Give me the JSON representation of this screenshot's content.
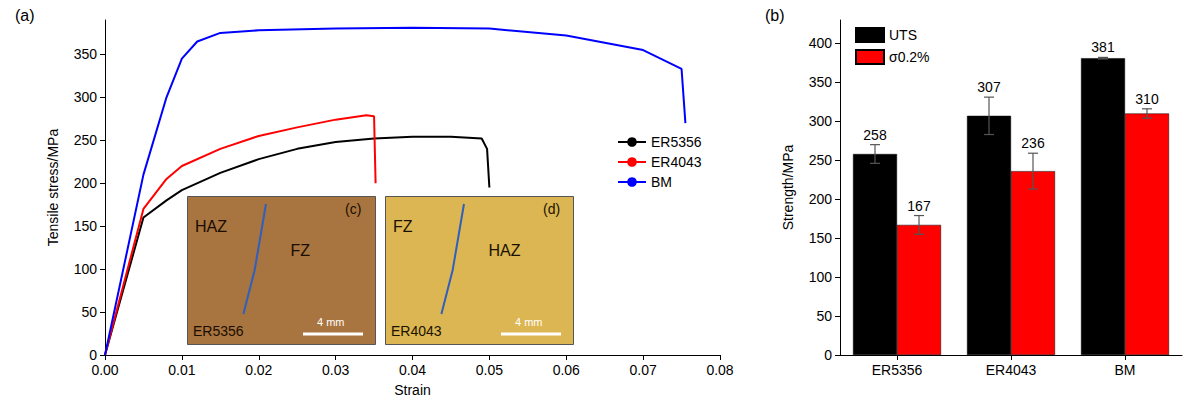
{
  "chart_data": [
    {
      "type": "line",
      "title": "(a)",
      "x_label": "Strain",
      "y_label": "Tensile stress/MPa",
      "xlim": [
        0,
        0.08
      ],
      "xticks": [
        {
          "value": 0,
          "label": "0.00"
        },
        {
          "value": 0.01,
          "label": "0.01"
        },
        {
          "value": 0.02,
          "label": "0.02"
        },
        {
          "value": 0.03,
          "label": "0.03"
        },
        {
          "value": 0.04,
          "label": "0.04"
        },
        {
          "value": 0.05,
          "label": "0.05"
        },
        {
          "value": 0.06,
          "label": "0.06"
        },
        {
          "value": 0.07,
          "label": "0.07"
        },
        {
          "value": 0.08,
          "label": "0.08"
        }
      ],
      "ylim": [
        0,
        390
      ],
      "yticks": [
        0,
        50,
        100,
        150,
        200,
        250,
        300,
        350
      ],
      "grid": false,
      "legend": "right",
      "series": [
        {
          "name": "ER5356",
          "color": "#000000",
          "x": [
            0,
            0.005,
            0.008,
            0.01,
            0.015,
            0.02,
            0.025,
            0.03,
            0.035,
            0.04,
            0.045,
            0.049,
            0.0497,
            0.05
          ],
          "values": [
            0,
            160,
            180,
            192,
            212,
            228,
            240,
            248,
            252,
            254,
            254,
            252,
            240,
            195
          ]
        },
        {
          "name": "ER4043",
          "color": "#ff0000",
          "x": [
            0,
            0.005,
            0.008,
            0.01,
            0.015,
            0.02,
            0.025,
            0.03,
            0.034,
            0.035,
            0.0352
          ],
          "values": [
            0,
            170,
            205,
            220,
            240,
            255,
            265,
            274,
            279,
            278,
            200
          ]
        },
        {
          "name": "BM",
          "color": "#0000ff",
          "x": [
            0,
            0.005,
            0.008,
            0.01,
            0.012,
            0.015,
            0.02,
            0.03,
            0.04,
            0.05,
            0.06,
            0.07,
            0.075,
            0.0755
          ],
          "values": [
            0,
            210,
            300,
            345,
            365,
            375,
            378,
            380,
            381,
            380,
            372,
            355,
            333,
            270
          ]
        }
      ],
      "insets": [
        {
          "label": "(c)",
          "sample": "ER5356",
          "regions": [
            "HAZ",
            "FZ"
          ],
          "scale_bar": "4 mm"
        },
        {
          "label": "(d)",
          "sample": "ER4043",
          "regions": [
            "FZ",
            "HAZ"
          ],
          "scale_bar": "4 mm"
        }
      ]
    },
    {
      "type": "bar",
      "title": "(b)",
      "y_label": "Strength/MPa",
      "categories": [
        "ER5356",
        "ER4043",
        "BM"
      ],
      "series": [
        {
          "name": "UTS",
          "color": "#000000",
          "values": [
            258,
            307,
            381
          ],
          "errors": [
            12,
            24,
            1
          ]
        },
        {
          "name": "σ0.2%",
          "color": "#ff0000",
          "values": [
            167,
            236,
            310
          ],
          "errors": [
            12,
            23,
            6
          ]
        }
      ],
      "ylim": [
        0,
        430
      ],
      "yticks": [
        0,
        50,
        100,
        150,
        200,
        250,
        300,
        350,
        400
      ],
      "grid": false,
      "legend": "upper left",
      "data_labels": true
    }
  ]
}
